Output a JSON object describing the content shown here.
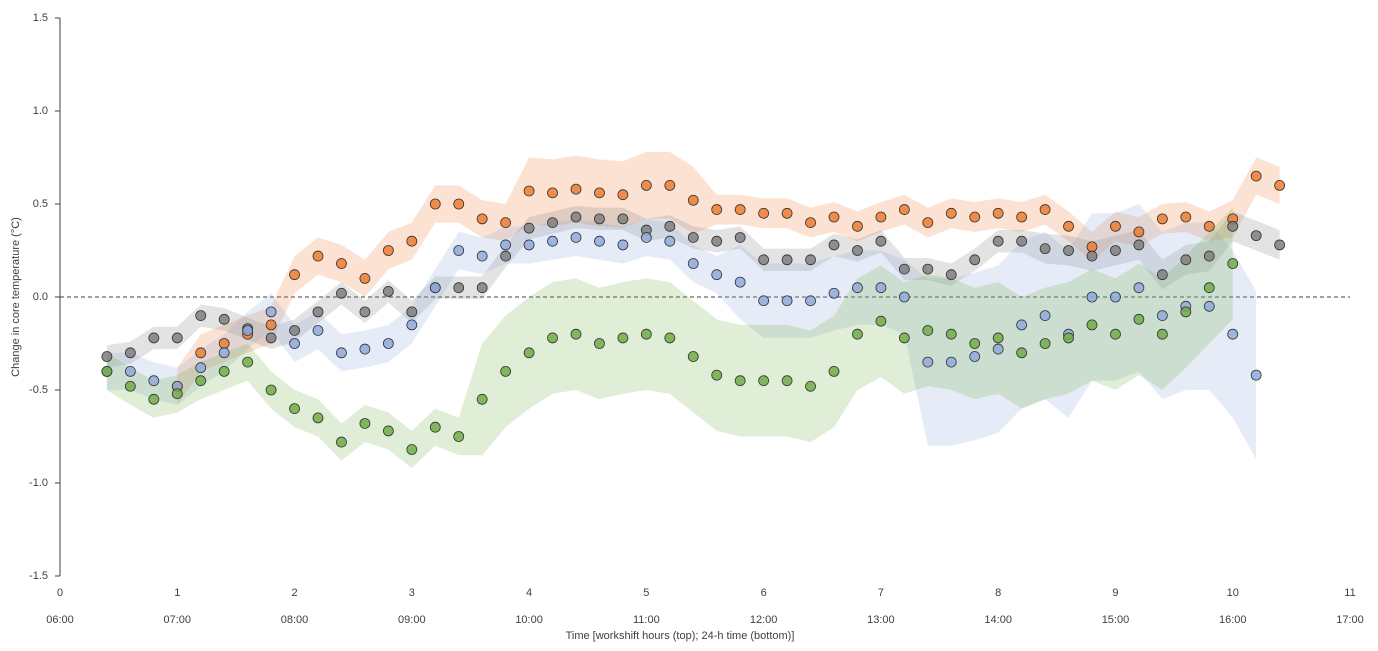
{
  "chart_data": {
    "type": "scatter",
    "x_label": "Time [workshift hours (top); 24-h time (bottom)]",
    "y_label": "Change in core temperature (°C)",
    "xlim": [
      0,
      11
    ],
    "ylim": [
      -1.5,
      1.5
    ],
    "xticks": [
      0,
      1,
      2,
      3,
      4,
      5,
      6,
      7,
      8,
      9,
      10,
      11
    ],
    "xtick_times": [
      "06:00",
      "07:00",
      "08:00",
      "09:00",
      "10:00",
      "11:00",
      "12:00",
      "13:00",
      "14:00",
      "15:00",
      "16:00",
      "17:00"
    ],
    "yticks": [
      {
        "value": 1.5,
        "label": "1.5"
      },
      {
        "value": 1,
        "label": "1.0"
      },
      {
        "value": 0.5,
        "label": "0.5"
      },
      {
        "value": 0,
        "label": "0.0"
      },
      {
        "value": -0.5,
        "label": "-0.5"
      },
      {
        "value": -1,
        "label": "-1.0"
      },
      {
        "value": -1.5,
        "label": "-1.5"
      }
    ],
    "reference_line": 0,
    "series": [
      {
        "color": "#ed7d31",
        "x": [
          1,
          1.2,
          1.4,
          1.6,
          1.8,
          2,
          2.2,
          2.4,
          2.6,
          2.8,
          3,
          3.2,
          3.4,
          3.6,
          3.8,
          4,
          4.2,
          4.4,
          4.6,
          4.8,
          5,
          5.2,
          5.4,
          5.6,
          5.8,
          6,
          6.2,
          6.4,
          6.6,
          6.8,
          7,
          7.2,
          7.4,
          7.6,
          7.8,
          8,
          8.2,
          8.4,
          8.6,
          8.8,
          9,
          9.2,
          9.4,
          9.6,
          9.8,
          10,
          10.2,
          10.4
        ],
        "values": [
          -0.48,
          -0.3,
          -0.25,
          -0.2,
          -0.15,
          0.12,
          0.22,
          0.18,
          0.1,
          0.25,
          0.3,
          0.5,
          0.5,
          0.42,
          0.4,
          0.57,
          0.56,
          0.58,
          0.56,
          0.55,
          0.6,
          0.6,
          0.52,
          0.47,
          0.47,
          0.45,
          0.45,
          0.4,
          0.43,
          0.38,
          0.43,
          0.47,
          0.4,
          0.45,
          0.43,
          0.45,
          0.43,
          0.47,
          0.38,
          0.27,
          0.38,
          0.35,
          0.42,
          0.43,
          0.38,
          0.42,
          0.65,
          0.6
        ],
        "sd": [
          0.1,
          0.1,
          0.1,
          0.1,
          0.1,
          0.1,
          0.1,
          0.1,
          0.1,
          0.1,
          0.1,
          0.1,
          0.1,
          0.1,
          0.1,
          0.18,
          0.18,
          0.18,
          0.18,
          0.18,
          0.18,
          0.18,
          0.18,
          0.08,
          0.08,
          0.08,
          0.08,
          0.08,
          0.08,
          0.08,
          0.08,
          0.08,
          0.08,
          0.08,
          0.08,
          0.08,
          0.08,
          0.08,
          0.08,
          0.08,
          0.08,
          0.08,
          0.08,
          0.08,
          0.08,
          0.1,
          0.1,
          0.1
        ]
      },
      {
        "color": "#7f7f7f",
        "x": [
          0.4,
          0.6,
          0.8,
          1,
          1.2,
          1.4,
          1.6,
          1.8,
          2,
          2.2,
          2.4,
          2.6,
          2.8,
          3,
          3.2,
          3.4,
          3.6,
          3.8,
          4,
          4.2,
          4.4,
          4.6,
          4.8,
          5,
          5.2,
          5.4,
          5.6,
          5.8,
          6,
          6.2,
          6.4,
          6.6,
          6.8,
          7,
          7.2,
          7.4,
          7.6,
          7.8,
          8,
          8.2,
          8.4,
          8.6,
          8.8,
          9,
          9.2,
          9.4,
          9.6,
          9.8,
          10,
          10.2,
          10.4
        ],
        "values": [
          -0.32,
          -0.3,
          -0.22,
          -0.22,
          -0.1,
          -0.12,
          -0.17,
          -0.22,
          -0.18,
          -0.08,
          0.02,
          -0.08,
          0.03,
          -0.08,
          0.05,
          0.05,
          0.05,
          0.22,
          0.37,
          0.4,
          0.43,
          0.42,
          0.42,
          0.36,
          0.38,
          0.32,
          0.3,
          0.32,
          0.2,
          0.2,
          0.2,
          0.28,
          0.25,
          0.3,
          0.15,
          0.15,
          0.12,
          0.2,
          0.3,
          0.3,
          0.26,
          0.25,
          0.22,
          0.25,
          0.28,
          0.12,
          0.2,
          0.22,
          0.38,
          0.33,
          0.28
        ],
        "sd": [
          0.06,
          0.06,
          0.06,
          0.06,
          0.06,
          0.06,
          0.06,
          0.06,
          0.06,
          0.06,
          0.06,
          0.06,
          0.06,
          0.06,
          0.06,
          0.06,
          0.06,
          0.06,
          0.06,
          0.06,
          0.06,
          0.06,
          0.06,
          0.06,
          0.06,
          0.06,
          0.06,
          0.06,
          0.06,
          0.06,
          0.06,
          0.06,
          0.06,
          0.06,
          0.06,
          0.06,
          0.06,
          0.06,
          0.06,
          0.06,
          0.08,
          0.08,
          0.08,
          0.08,
          0.08,
          0.08,
          0.08,
          0.08,
          0.08,
          0.08,
          0.08
        ]
      },
      {
        "color": "#8faadc",
        "x": [
          0.4,
          0.6,
          0.8,
          1,
          1.2,
          1.4,
          1.6,
          1.8,
          2,
          2.2,
          2.4,
          2.6,
          2.8,
          3,
          3.2,
          3.4,
          3.6,
          3.8,
          4,
          4.2,
          4.4,
          4.6,
          4.8,
          5,
          5.2,
          5.4,
          5.6,
          5.8,
          6,
          6.2,
          6.4,
          6.6,
          6.8,
          7,
          7.2,
          7.4,
          7.6,
          7.8,
          8,
          8.2,
          8.4,
          8.6,
          8.8,
          9,
          9.2,
          9.4,
          9.6,
          9.8,
          10,
          10.2
        ],
        "values": [
          -0.4,
          -0.4,
          -0.45,
          -0.48,
          -0.38,
          -0.3,
          -0.18,
          -0.08,
          -0.25,
          -0.18,
          -0.3,
          -0.28,
          -0.25,
          -0.15,
          0.05,
          0.25,
          0.22,
          0.28,
          0.28,
          0.3,
          0.32,
          0.3,
          0.28,
          0.32,
          0.3,
          0.18,
          0.12,
          0.08,
          -0.02,
          -0.02,
          -0.02,
          0.02,
          0.05,
          0.05,
          0,
          -0.35,
          -0.35,
          -0.32,
          -0.28,
          -0.15,
          -0.1,
          -0.2,
          0,
          0,
          0.05,
          -0.1,
          -0.05,
          -0.05,
          -0.2,
          -0.42
        ],
        "sd": [
          0.1,
          0.1,
          0.1,
          0.1,
          0.1,
          0.1,
          0.1,
          0.1,
          0.1,
          0.1,
          0.1,
          0.1,
          0.1,
          0.1,
          0.1,
          0.1,
          0.1,
          0.1,
          0.1,
          0.1,
          0.1,
          0.1,
          0.1,
          0.1,
          0.1,
          0.1,
          0.1,
          0.2,
          0.2,
          0.2,
          0.2,
          0.2,
          0.2,
          0.2,
          0.2,
          0.45,
          0.45,
          0.45,
          0.45,
          0.45,
          0.45,
          0.45,
          0.45,
          0.45,
          0.45,
          0.45,
          0.45,
          0.45,
          0.45,
          0.45
        ]
      },
      {
        "color": "#70ad47",
        "x": [
          0.4,
          0.6,
          0.8,
          1,
          1.2,
          1.4,
          1.6,
          1.8,
          2,
          2.2,
          2.4,
          2.6,
          2.8,
          3,
          3.2,
          3.4,
          3.6,
          3.8,
          4,
          4.2,
          4.4,
          4.6,
          4.8,
          5,
          5.2,
          5.4,
          5.6,
          5.8,
          6,
          6.2,
          6.4,
          6.6,
          6.8,
          7,
          7.2,
          7.4,
          7.6,
          7.8,
          8,
          8.2,
          8.4,
          8.6,
          8.8,
          9,
          9.2,
          9.4,
          9.6,
          9.8,
          10
        ],
        "values": [
          -0.4,
          -0.48,
          -0.55,
          -0.52,
          -0.45,
          -0.4,
          -0.35,
          -0.5,
          -0.6,
          -0.65,
          -0.78,
          -0.68,
          -0.72,
          -0.82,
          -0.7,
          -0.75,
          -0.55,
          -0.4,
          -0.3,
          -0.22,
          -0.2,
          -0.25,
          -0.22,
          -0.2,
          -0.22,
          -0.32,
          -0.42,
          -0.45,
          -0.45,
          -0.45,
          -0.48,
          -0.4,
          -0.2,
          -0.13,
          -0.22,
          -0.18,
          -0.2,
          -0.25,
          -0.22,
          -0.3,
          -0.25,
          -0.22,
          -0.15,
          -0.2,
          -0.12,
          -0.2,
          -0.08,
          0.05,
          0.18
        ],
        "sd": [
          0.1,
          0.1,
          0.1,
          0.1,
          0.1,
          0.1,
          0.1,
          0.1,
          0.1,
          0.1,
          0.1,
          0.1,
          0.1,
          0.1,
          0.1,
          0.1,
          0.3,
          0.3,
          0.3,
          0.3,
          0.3,
          0.3,
          0.3,
          0.3,
          0.3,
          0.3,
          0.3,
          0.3,
          0.3,
          0.3,
          0.3,
          0.3,
          0.3,
          0.3,
          0.3,
          0.3,
          0.3,
          0.3,
          0.3,
          0.3,
          0.3,
          0.3,
          0.3,
          0.3,
          0.3,
          0.3,
          0.3,
          0.3,
          0.3
        ]
      }
    ]
  }
}
